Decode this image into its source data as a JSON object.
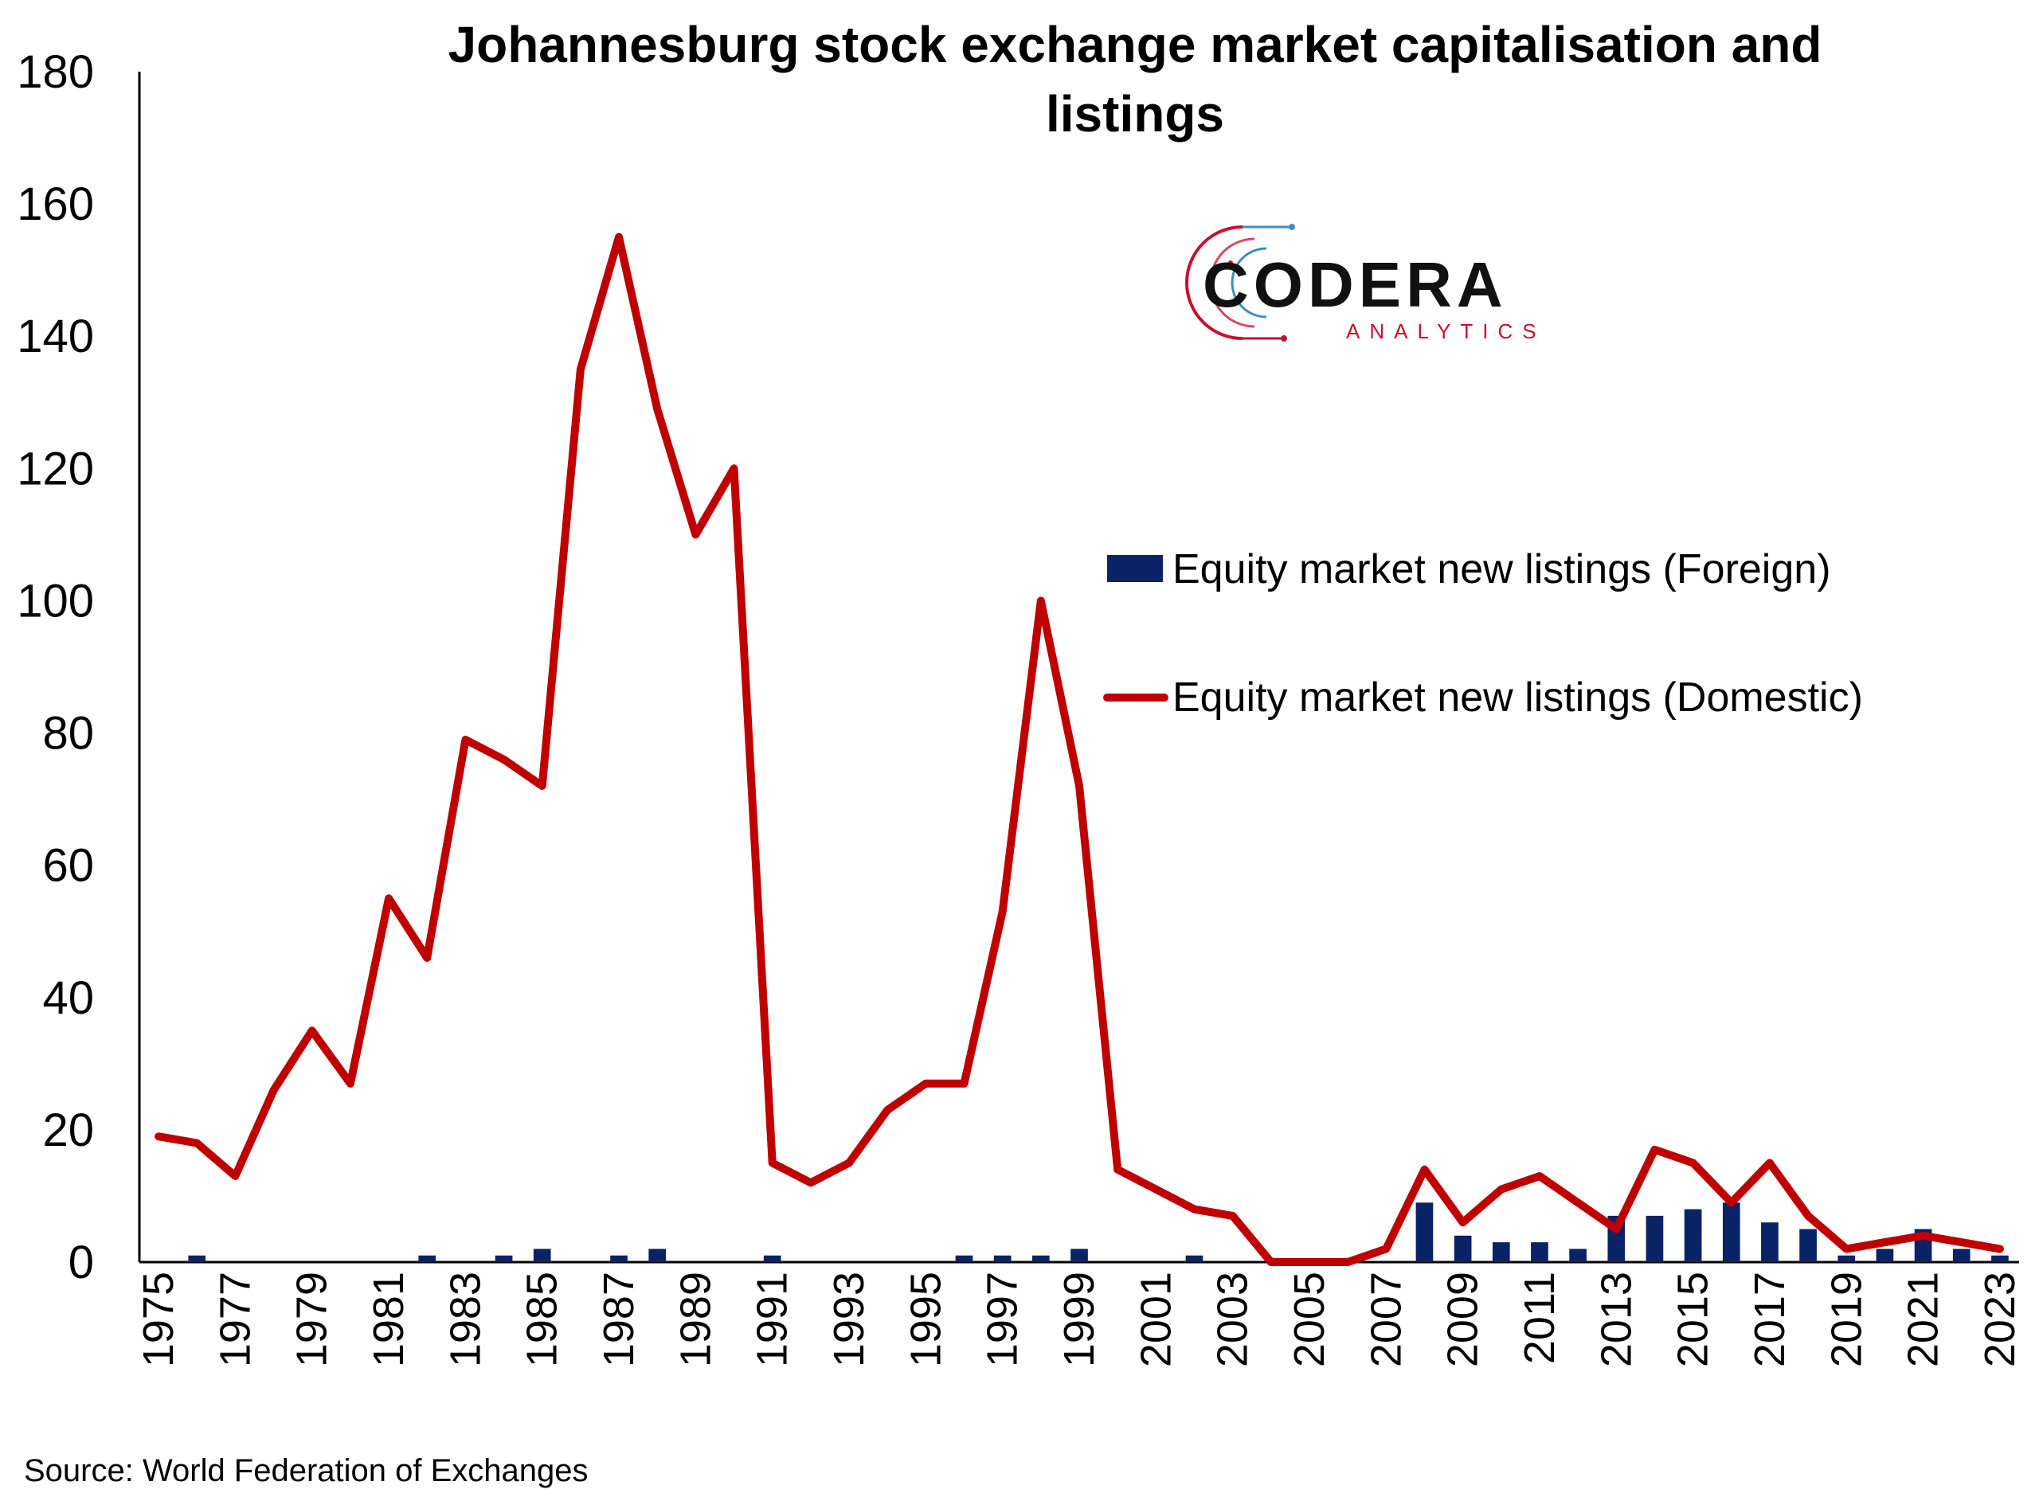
{
  "chart_data": {
    "type": "bar+line",
    "title_line1": "Johannesburg stock exchange market capitalisation and",
    "title_line2": "listings",
    "ylim": [
      0,
      180
    ],
    "yticks": [
      0,
      20,
      40,
      60,
      80,
      100,
      120,
      140,
      160,
      180
    ],
    "years": [
      1975,
      1976,
      1977,
      1978,
      1979,
      1980,
      1981,
      1982,
      1983,
      1984,
      1985,
      1986,
      1987,
      1988,
      1989,
      1990,
      1991,
      1992,
      1993,
      1994,
      1995,
      1996,
      1997,
      1998,
      1999,
      2000,
      2001,
      2002,
      2003,
      2004,
      2005,
      2006,
      2007,
      2008,
      2009,
      2010,
      2011,
      2012,
      2013,
      2014,
      2015,
      2016,
      2017,
      2018,
      2019,
      2020,
      2021,
      2022,
      2023
    ],
    "xtick_labels": [
      "1975",
      "1977",
      "1979",
      "1981",
      "1983",
      "1985",
      "1987",
      "1989",
      "1991",
      "1993",
      "1995",
      "1997",
      "1999",
      "2001",
      "2003",
      "2005",
      "2007",
      "2009",
      "2011",
      "2013",
      "2015",
      "2017",
      "2019",
      "2021",
      "2023"
    ],
    "series": [
      {
        "name": "Equity market new listings (Foreign)",
        "type": "bar",
        "color": "#0a2266",
        "values": [
          0,
          1,
          0,
          0,
          0,
          0,
          0,
          1,
          0,
          1,
          2,
          0,
          1,
          2,
          0,
          0,
          1,
          0,
          0,
          0,
          0,
          1,
          1,
          1,
          2,
          0,
          0,
          1,
          0,
          0,
          0,
          0,
          0,
          9,
          4,
          3,
          3,
          2,
          7,
          7,
          8,
          9,
          6,
          5,
          1,
          2,
          5,
          2,
          1
        ]
      },
      {
        "name": "Equity market new listings (Domestic)",
        "type": "line",
        "color": "#c00000",
        "values": [
          19,
          18,
          13,
          26,
          35,
          27,
          55,
          46,
          79,
          76,
          72,
          135,
          155,
          129,
          110,
          120,
          15,
          12,
          15,
          23,
          27,
          27,
          53,
          100,
          72,
          14,
          11,
          8,
          7,
          0,
          0,
          0,
          2,
          14,
          6,
          11,
          13,
          9,
          5,
          17,
          15,
          9,
          15,
          7,
          2,
          3,
          4,
          3,
          2
        ]
      }
    ],
    "legend_position": "right-middle",
    "source": "Source: World Federation of Exchanges"
  },
  "logo": {
    "main": "CODERA",
    "sub": "ANALYTICS",
    "sub_color": "#c8102e",
    "sub_color2": "#3a8fc4"
  }
}
